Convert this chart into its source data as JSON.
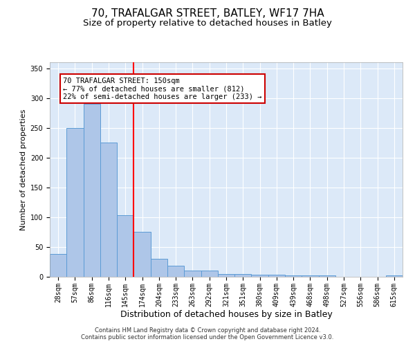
{
  "title1": "70, TRAFALGAR STREET, BATLEY, WF17 7HA",
  "title2": "Size of property relative to detached houses in Batley",
  "xlabel": "Distribution of detached houses by size in Batley",
  "ylabel": "Number of detached properties",
  "categories": [
    "28sqm",
    "57sqm",
    "86sqm",
    "116sqm",
    "145sqm",
    "174sqm",
    "204sqm",
    "233sqm",
    "263sqm",
    "292sqm",
    "321sqm",
    "351sqm",
    "380sqm",
    "409sqm",
    "439sqm",
    "468sqm",
    "498sqm",
    "527sqm",
    "556sqm",
    "586sqm",
    "615sqm"
  ],
  "values": [
    38,
    250,
    290,
    225,
    103,
    76,
    30,
    19,
    11,
    10,
    5,
    5,
    3,
    3,
    2,
    2,
    2,
    0,
    0,
    0,
    2
  ],
  "bar_color": "#aec6e8",
  "bar_edge_color": "#5b9bd5",
  "redline_index": 4,
  "annotation_line1": "70 TRAFALGAR STREET: 150sqm",
  "annotation_line2": "← 77% of detached houses are smaller (812)",
  "annotation_line3": "22% of semi-detached houses are larger (233) →",
  "annotation_box_color": "#ffffff",
  "annotation_box_edge_color": "#cc0000",
  "ylim": [
    0,
    360
  ],
  "yticks": [
    0,
    50,
    100,
    150,
    200,
    250,
    300,
    350
  ],
  "plot_background_color": "#dce9f8",
  "footer_line1": "Contains HM Land Registry data © Crown copyright and database right 2024.",
  "footer_line2": "Contains public sector information licensed under the Open Government Licence v3.0.",
  "title1_fontsize": 11,
  "title2_fontsize": 9.5,
  "xlabel_fontsize": 9,
  "ylabel_fontsize": 8,
  "tick_fontsize": 7,
  "annotation_fontsize": 7.5
}
